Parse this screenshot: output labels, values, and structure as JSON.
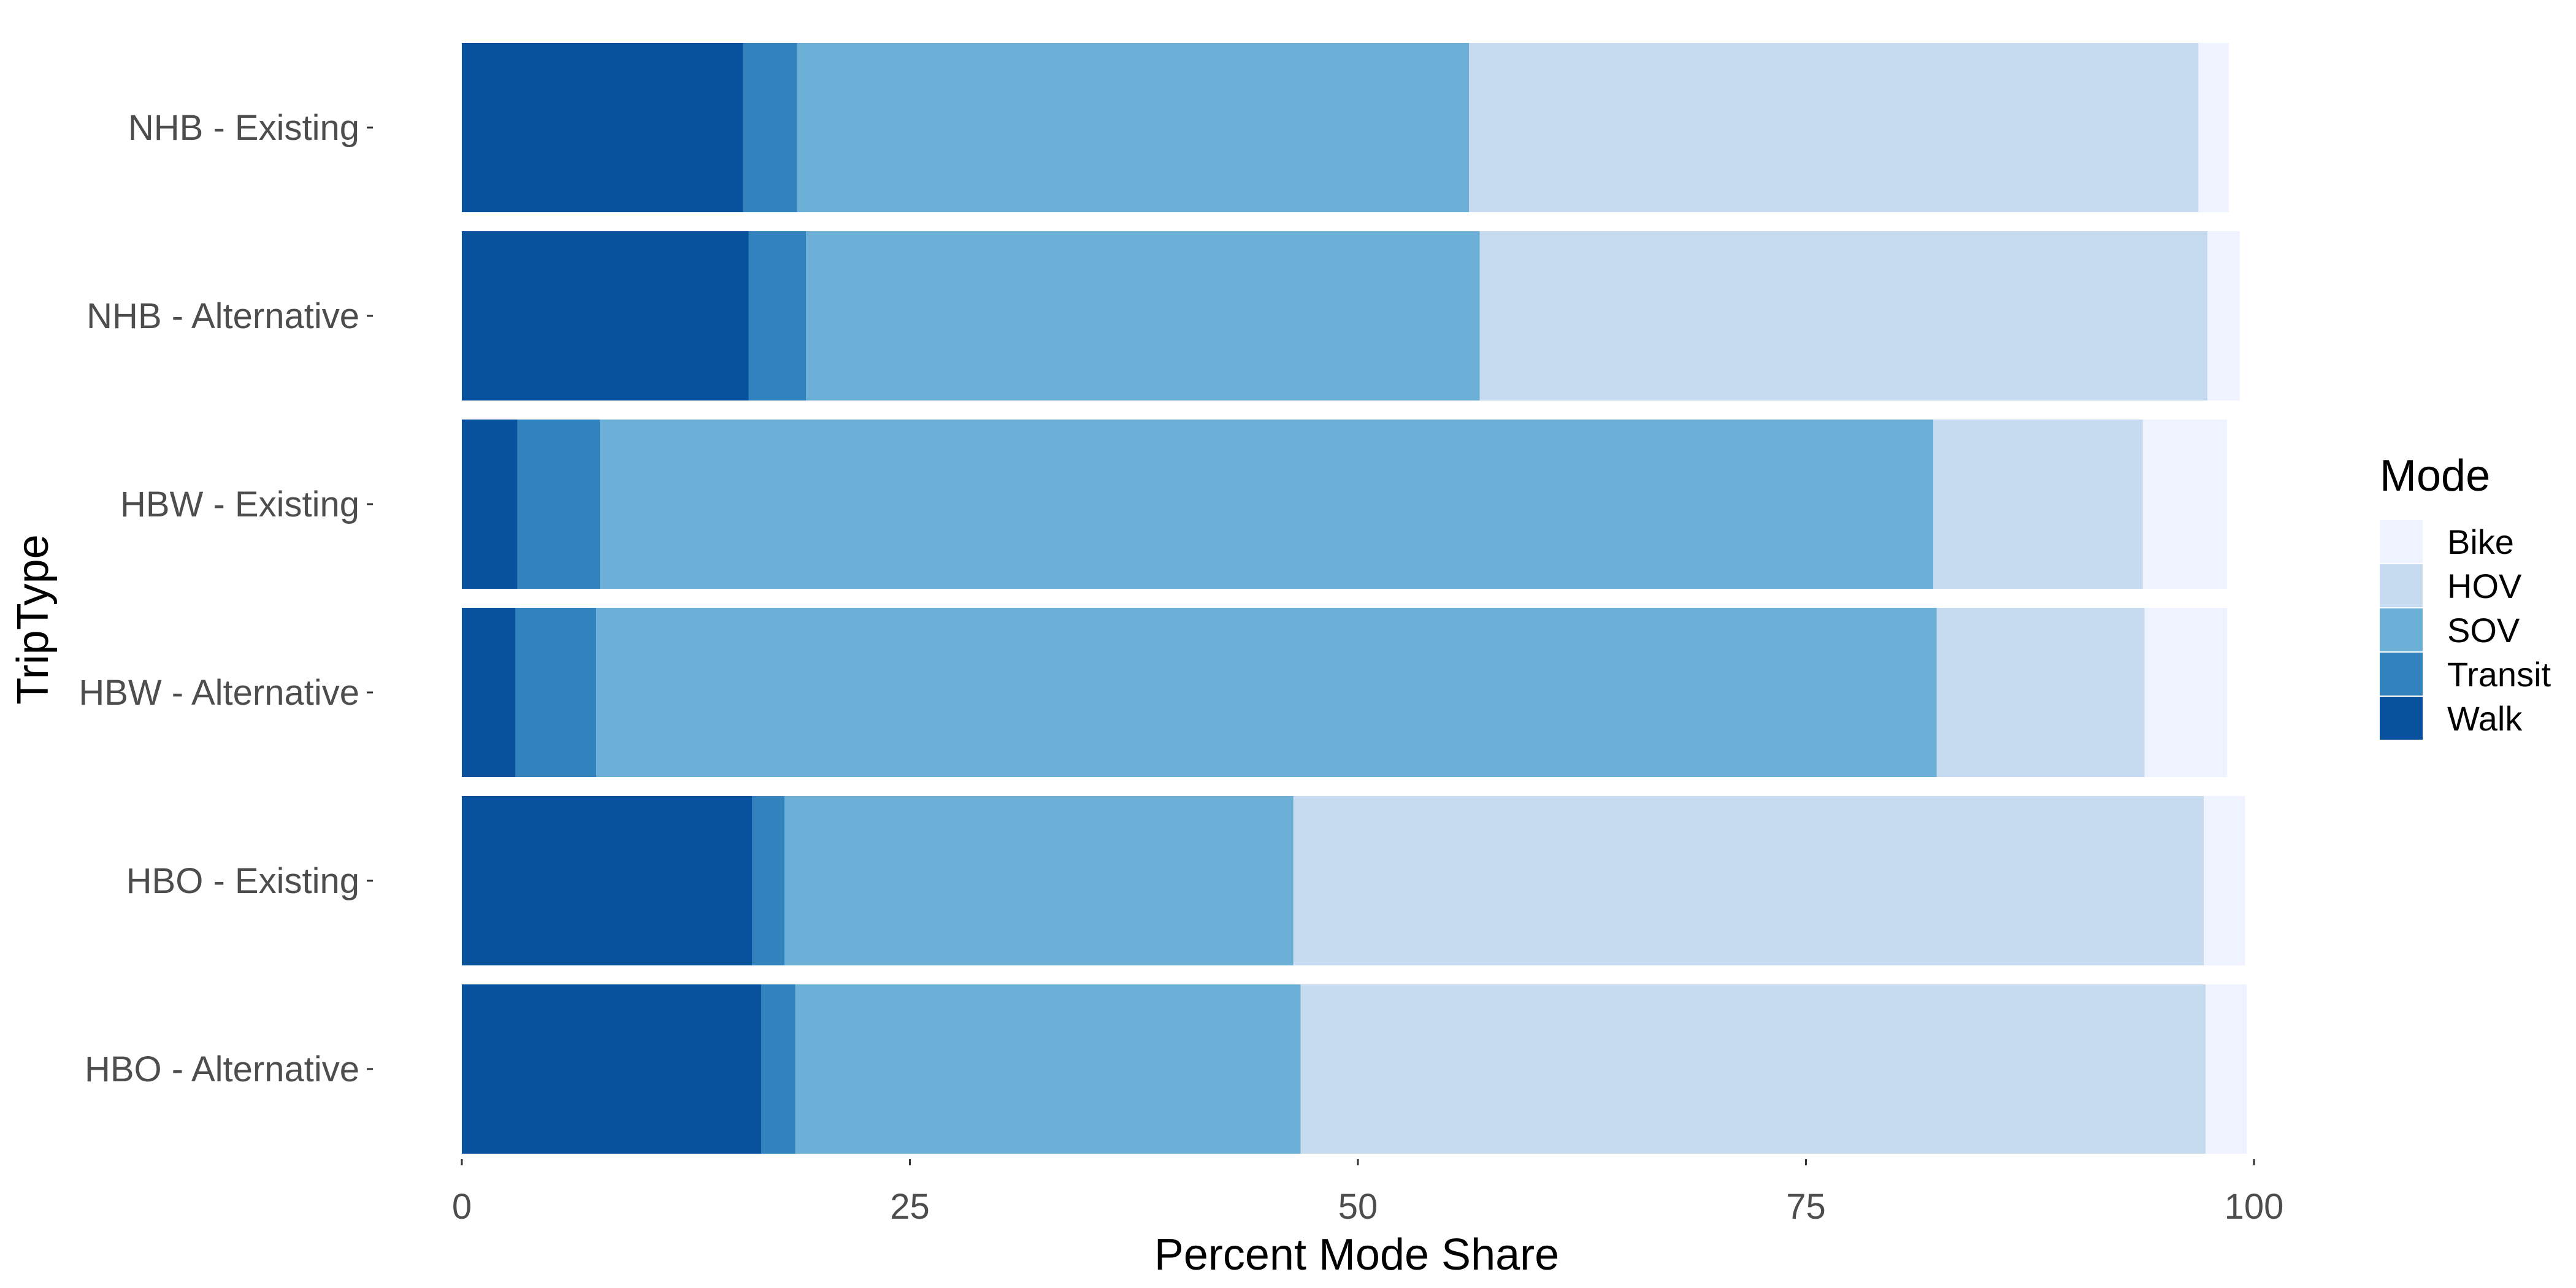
{
  "chart_data": {
    "type": "bar",
    "orientation": "horizontal",
    "stacked": true,
    "xlabel": "Percent Mode Share",
    "ylabel": "TripType",
    "xlim": [
      0,
      100
    ],
    "xticks": [
      "0",
      "25",
      "50",
      "75",
      "100"
    ],
    "categories": [
      "NHB - Existing",
      "NHB - Alternative",
      "HBW - Existing",
      "HBW - Alternative",
      "HBO - Existing",
      "HBO - Alternative"
    ],
    "series": [
      {
        "name": "Walk",
        "color": "#08519c",
        "values": [
          15.7,
          16.0,
          3.1,
          3.0,
          16.2,
          16.7
        ]
      },
      {
        "name": "Transit",
        "color": "#3182bd",
        "values": [
          3.0,
          3.2,
          4.6,
          4.5,
          1.8,
          1.9
        ]
      },
      {
        "name": "SOV",
        "color": "#6baed6",
        "values": [
          37.5,
          37.6,
          74.4,
          74.8,
          28.4,
          28.2
        ]
      },
      {
        "name": "HOV",
        "color": "#c6dbef",
        "values": [
          40.7,
          40.6,
          11.7,
          11.6,
          50.8,
          50.5
        ]
      },
      {
        "name": "Bike",
        "color": "#eff3ff",
        "values": [
          1.7,
          1.8,
          4.7,
          4.6,
          2.3,
          2.3
        ]
      }
    ],
    "legend": {
      "title": "Mode",
      "position": "right",
      "items": [
        "Bike",
        "HOV",
        "SOV",
        "Transit",
        "Walk"
      ]
    },
    "grid": false
  }
}
